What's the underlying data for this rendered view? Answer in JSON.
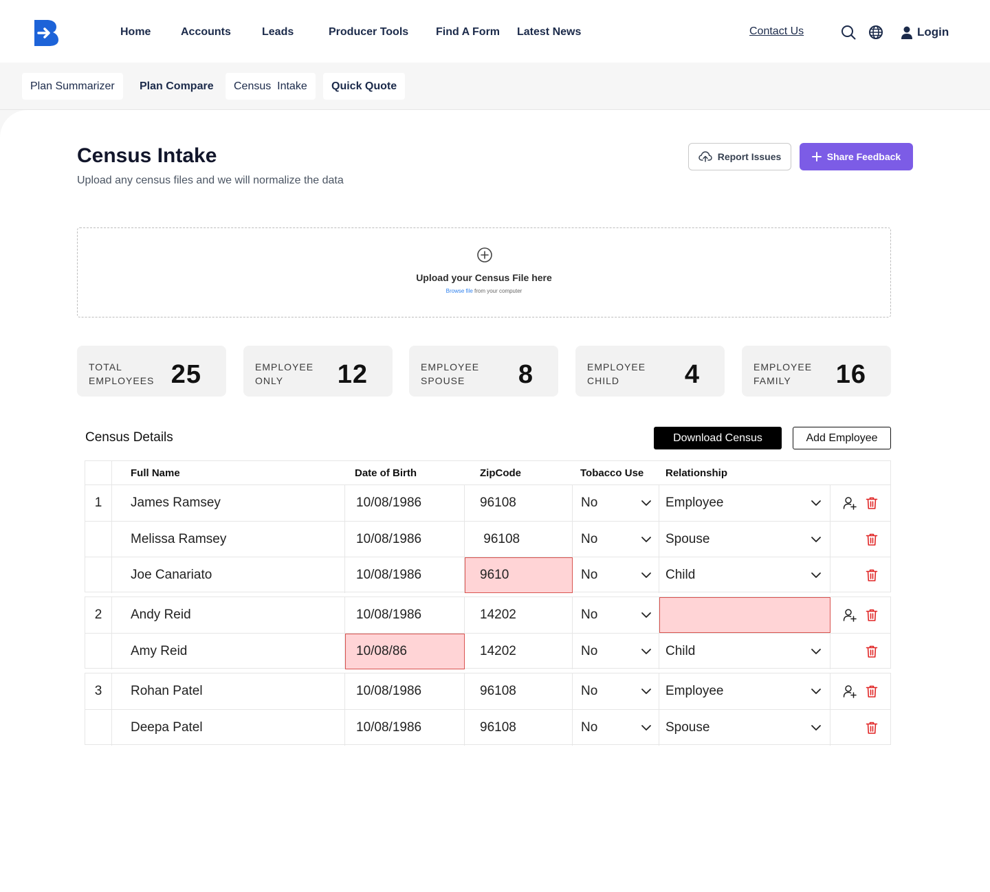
{
  "nav": {
    "items": [
      "Home",
      "Accounts",
      "Leads",
      "Producer Tools",
      "Find A Form",
      "Latest News"
    ],
    "contact": "Contact Us",
    "login": "Login"
  },
  "subnav": {
    "tabs": [
      "Plan Summarizer",
      "Plan Compare",
      "Census  Intake",
      "Quick Quote"
    ]
  },
  "page": {
    "title": "Census Intake",
    "subtitle": "Upload any census files and we will normalize the data",
    "report_button": "Report Issues",
    "feedback_button": "Share Feedback"
  },
  "upload": {
    "title": "Upload your Census File here",
    "link": "Browse file",
    "suffix": " from your computer"
  },
  "stats": [
    {
      "line1": "TOTAL",
      "line2": "EMPLOYEES",
      "value": "25"
    },
    {
      "line1": "EMPLOYEE",
      "line2": "ONLY",
      "value": "12"
    },
    {
      "line1": "EMPLOYEE",
      "line2": "SPOUSE",
      "value": "8"
    },
    {
      "line1": "EMPLOYEE",
      "line2": "CHILD",
      "value": "4"
    },
    {
      "line1": "EMPLOYEE",
      "line2": "FAMILY",
      "value": "16"
    }
  ],
  "census": {
    "title": "Census Details",
    "download_button": "Download Census",
    "add_button": "Add Employee",
    "columns": [
      "Full Name",
      "Date of Birth",
      "ZipCode",
      "Tobacco Use",
      "Relationship"
    ],
    "groups": [
      {
        "index": "1",
        "rows": [
          {
            "name": "James Ramsey",
            "dob": "10/08/1986",
            "zip": "96108",
            "tobacco": "No",
            "relationship": "Employee"
          },
          {
            "name": "Melissa Ramsey",
            "dob": "10/08/1986",
            "zip": " 96108",
            "tobacco": "No",
            "relationship": "Spouse"
          },
          {
            "name": "Joe Canariato",
            "dob": "10/08/1986",
            "zip": "9610",
            "tobacco": "No",
            "relationship": "Child"
          }
        ]
      },
      {
        "index": "2",
        "rows": [
          {
            "name": "Andy Reid",
            "dob": "10/08/1986",
            "zip": "14202",
            "tobacco": "No",
            "relationship": ""
          },
          {
            "name": "Amy Reid",
            "dob": "10/08/86",
            "zip": "14202",
            "tobacco": "No",
            "relationship": "Child"
          }
        ]
      },
      {
        "index": "3",
        "rows": [
          {
            "name": "Rohan Patel",
            "dob": "10/08/1986",
            "zip": "96108",
            "tobacco": "No",
            "relationship": "Employee"
          },
          {
            "name": "Deepa Patel",
            "dob": "10/08/1986",
            "zip": "96108",
            "tobacco": "No",
            "relationship": "Spouse"
          }
        ]
      }
    ]
  },
  "colors": {
    "brand": "#1d63d8",
    "accent": "#7c5ce6",
    "error_bg": "#ffd4d6",
    "error_border": "#d9534f",
    "delete": "#e02424"
  }
}
